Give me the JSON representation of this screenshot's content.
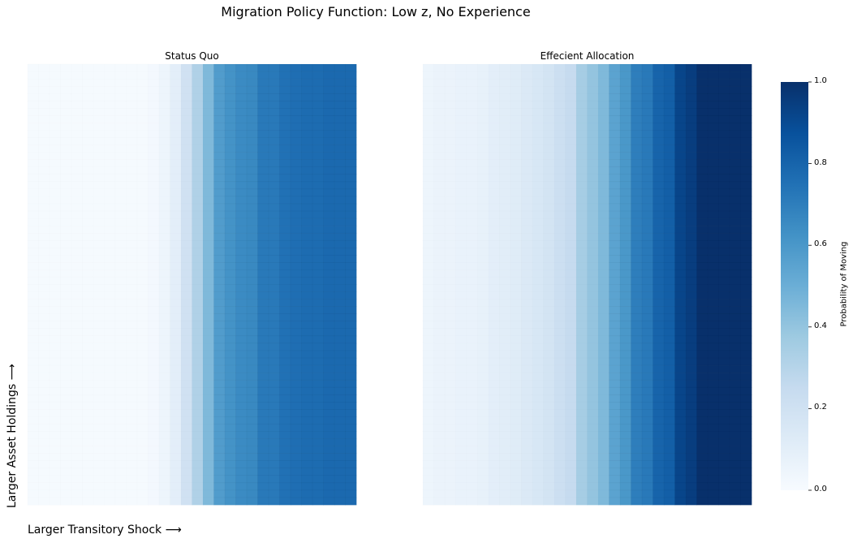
{
  "chart_data": {
    "type": "heatmap",
    "title": "Migration Policy Function: Low z, No Experience",
    "xlabel": "Larger Transitory Shock ⟶",
    "ylabel": "Larger Asset Holdings ⟶",
    "colorbar": {
      "label": "Probability of Moving",
      "range": [
        0.0,
        1.0
      ],
      "ticks": [
        "0.0",
        "0.2",
        "0.4",
        "0.6",
        "0.8",
        "1.0"
      ],
      "colormap": "Blues",
      "colors": [
        "#f7fbff",
        "#deebf7",
        "#c6dbef",
        "#9ecae1",
        "#6baed6",
        "#4292c6",
        "#2171b5",
        "#08519c",
        "#08306b"
      ]
    },
    "panels": [
      {
        "title": "Status Quo",
        "column_values": [
          0.01,
          0.01,
          0.01,
          0.01,
          0.01,
          0.01,
          0.01,
          0.01,
          0.01,
          0.01,
          0.01,
          0.02,
          0.05,
          0.1,
          0.2,
          0.32,
          0.45,
          0.58,
          0.62,
          0.65,
          0.66,
          0.72,
          0.72,
          0.75,
          0.76,
          0.77,
          0.77,
          0.78,
          0.78,
          0.78
        ]
      },
      {
        "title": "Effecient Allocation",
        "column_values": [
          0.05,
          0.06,
          0.06,
          0.07,
          0.07,
          0.08,
          0.1,
          0.11,
          0.12,
          0.14,
          0.16,
          0.18,
          0.22,
          0.25,
          0.35,
          0.4,
          0.45,
          0.55,
          0.6,
          0.7,
          0.72,
          0.8,
          0.82,
          0.92,
          0.95,
          1.0,
          1.0,
          1.0,
          1.0,
          1.0
        ]
      }
    ],
    "grid": false
  }
}
